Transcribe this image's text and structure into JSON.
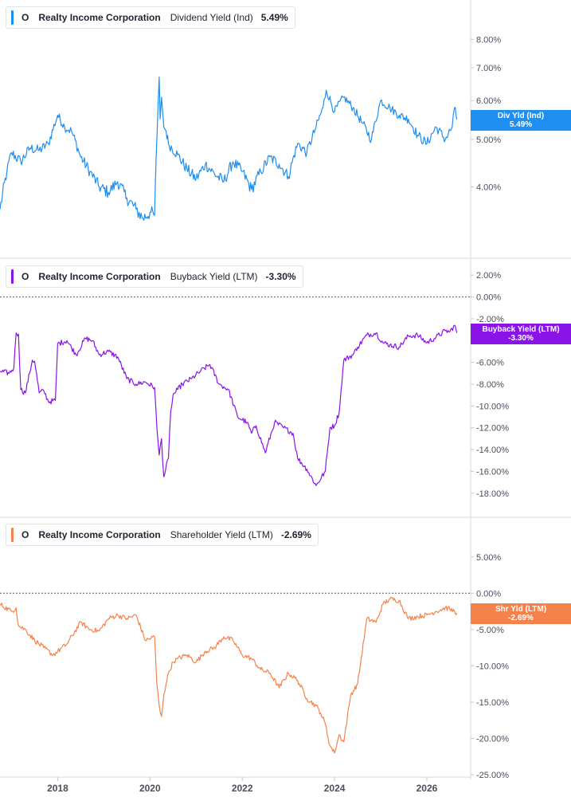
{
  "colors": {
    "dividend": "#1f8ef1",
    "buyback": "#8a14e8",
    "shareholder": "#f5824a",
    "axis_text": "#4a4f5c",
    "grid": "#d8dbe0"
  },
  "x_axis": {
    "range": [
      2016.75,
      2026.95
    ],
    "ticks": [
      {
        "value": 2018,
        "label": "2018"
      },
      {
        "value": 2020,
        "label": "2020"
      },
      {
        "value": 2022,
        "label": "2022"
      },
      {
        "value": 2024,
        "label": "2024"
      },
      {
        "value": 2026,
        "label": "2026"
      }
    ]
  },
  "panels": [
    {
      "key": "dividend",
      "legend": {
        "ticker": "O",
        "company": "Realty Income Corporation",
        "metric": "Dividend Yield (Ind)",
        "value": "5.49%"
      },
      "flag": {
        "label": "Div Yld (Ind)",
        "value": "5.49%"
      },
      "last_value": 5.49,
      "yscale": "log",
      "ylim": [
        3.25,
        8.6
      ],
      "ticks": [
        {
          "value": 8,
          "label": "8.00%"
        },
        {
          "value": 7,
          "label": "7.00%"
        },
        {
          "value": 6,
          "label": "6.00%"
        },
        {
          "value": 5,
          "label": "5.00%"
        },
        {
          "value": 4,
          "label": "4.00%"
        }
      ]
    },
    {
      "key": "buyback",
      "legend": {
        "ticker": "O",
        "company": "Realty Income Corporation",
        "metric": "Buyback Yield (LTM)",
        "value": "-3.30%"
      },
      "flag": {
        "label": "Buyback Yield (LTM)",
        "value": "-3.30%"
      },
      "last_value": -3.3,
      "yscale": "linear",
      "ylim": [
        -18.6,
        2.6
      ],
      "zero_line": true,
      "ticks": [
        {
          "value": 2,
          "label": "2.00%"
        },
        {
          "value": 0,
          "label": "0.00%"
        },
        {
          "value": -2,
          "label": "-2.00%"
        },
        {
          "value": -4,
          "label": "-4.00%"
        },
        {
          "value": -6,
          "label": "-6.00%"
        },
        {
          "value": -8,
          "label": "-8.00%"
        },
        {
          "value": -10,
          "label": "-10.00%"
        },
        {
          "value": -12,
          "label": "-12.00%"
        },
        {
          "value": -14,
          "label": "-14.00%"
        },
        {
          "value": -16,
          "label": "-16.00%"
        },
        {
          "value": -18,
          "label": "-18.00%"
        }
      ]
    },
    {
      "key": "shareholder",
      "legend": {
        "ticker": "O",
        "company": "Realty Income Corporation",
        "metric": "Shareholder Yield (LTM)",
        "value": "-2.69%"
      },
      "flag": {
        "label": "Shr Yld (LTM)",
        "value": "-2.69%"
      },
      "last_value": -2.69,
      "yscale": "linear",
      "ylim": [
        -25,
        7.5
      ],
      "zero_line": true,
      "ticks": [
        {
          "value": 5,
          "label": "5.00%"
        },
        {
          "value": 0,
          "label": "0.00%"
        },
        {
          "value": -5,
          "label": "-5.00%"
        },
        {
          "value": -10,
          "label": "-10.00%"
        },
        {
          "value": -15,
          "label": "-15.00%"
        },
        {
          "value": -20,
          "label": "-20.00%"
        },
        {
          "value": -25,
          "label": "-25.00%"
        }
      ]
    }
  ],
  "chart_data": [
    {
      "type": "line",
      "series": [
        {
          "name": "Dividend Yield (Ind)",
          "x": [
            2016.75,
            2016.9,
            2017.0,
            2017.2,
            2017.4,
            2017.6,
            2017.8,
            2018.0,
            2018.15,
            2018.3,
            2018.5,
            2018.7,
            2018.9,
            2019.1,
            2019.3,
            2019.5,
            2019.7,
            2019.85,
            2020.0,
            2020.1,
            2020.15,
            2020.2,
            2020.22,
            2020.25,
            2020.3,
            2020.35,
            2020.4,
            2020.6,
            2020.8,
            2021.0,
            2021.2,
            2021.4,
            2021.6,
            2021.8,
            2022.0,
            2022.2,
            2022.4,
            2022.6,
            2022.8,
            2023.0,
            2023.2,
            2023.4,
            2023.6,
            2023.75,
            2023.82,
            2024.0,
            2024.2,
            2024.4,
            2024.6,
            2024.8,
            2025.0,
            2025.2,
            2025.4,
            2025.6,
            2025.8,
            2026.0,
            2026.2,
            2026.4,
            2026.55,
            2026.6,
            2026.65
          ],
          "values": [
            3.6,
            4.3,
            4.7,
            4.5,
            4.8,
            4.75,
            4.9,
            5.6,
            5.3,
            5.2,
            4.6,
            4.3,
            4.0,
            3.9,
            4.1,
            3.8,
            3.6,
            3.45,
            3.55,
            3.5,
            5.0,
            6.7,
            5.5,
            6.1,
            5.3,
            5.2,
            4.9,
            4.65,
            4.35,
            4.15,
            4.45,
            4.25,
            4.1,
            4.5,
            4.3,
            3.95,
            4.3,
            4.6,
            4.45,
            4.2,
            4.9,
            4.7,
            5.3,
            5.8,
            6.3,
            5.7,
            6.1,
            5.8,
            5.4,
            5.0,
            6.0,
            5.8,
            5.6,
            5.5,
            5.1,
            4.9,
            5.3,
            5.0,
            5.3,
            5.8,
            5.49
          ]
        }
      ],
      "ylabel": "",
      "ylim": [
        3.25,
        8.6
      ],
      "yscale": "log"
    },
    {
      "type": "line",
      "series": [
        {
          "name": "Buyback Yield (LTM)",
          "x": [
            2016.75,
            2016.95,
            2017.05,
            2017.1,
            2017.15,
            2017.2,
            2017.3,
            2017.45,
            2017.5,
            2017.6,
            2017.7,
            2017.8,
            2017.95,
            2018.0,
            2018.2,
            2018.4,
            2018.6,
            2018.75,
            2018.9,
            2019.1,
            2019.3,
            2019.5,
            2019.7,
            2019.9,
            2020.1,
            2020.15,
            2020.2,
            2020.25,
            2020.3,
            2020.4,
            2020.45,
            2020.5,
            2020.6,
            2020.7,
            2020.9,
            2021.1,
            2021.3,
            2021.5,
            2021.7,
            2021.9,
            2022.1,
            2022.2,
            2022.3,
            2022.5,
            2022.7,
            2022.9,
            2023.1,
            2023.2,
            2023.4,
            2023.6,
            2023.8,
            2023.9,
            2024.0,
            2024.1,
            2024.2,
            2024.4,
            2024.5,
            2024.7,
            2024.9,
            2025.05,
            2025.2,
            2025.4,
            2025.6,
            2025.8,
            2026.0,
            2026.2,
            2026.4,
            2026.5,
            2026.6,
            2026.65
          ],
          "values": [
            -6.8,
            -7.0,
            -6.5,
            -3.3,
            -3.4,
            -8.5,
            -8.8,
            -5.8,
            -5.9,
            -8.8,
            -8.6,
            -9.6,
            -9.5,
            -4.3,
            -4.0,
            -5.3,
            -3.8,
            -4.0,
            -5.3,
            -5.0,
            -5.5,
            -7.5,
            -8.0,
            -7.8,
            -8.3,
            -12.0,
            -14.5,
            -13.0,
            -16.5,
            -14.8,
            -10.5,
            -9.0,
            -8.5,
            -8.0,
            -7.5,
            -6.8,
            -6.2,
            -8.0,
            -8.5,
            -11.0,
            -11.5,
            -12.5,
            -11.8,
            -14.3,
            -11.5,
            -12.0,
            -12.5,
            -14.8,
            -15.8,
            -17.3,
            -16.0,
            -12.0,
            -11.8,
            -10.6,
            -5.8,
            -5.3,
            -4.6,
            -3.5,
            -3.3,
            -4.2,
            -4.4,
            -4.6,
            -3.6,
            -3.5,
            -4.2,
            -3.7,
            -3.1,
            -3.2,
            -2.6,
            -3.3
          ]
        }
      ],
      "ylabel": "",
      "ylim": [
        -18.6,
        2.6
      ]
    },
    {
      "type": "line",
      "series": [
        {
          "name": "Shareholder Yield (LTM)",
          "x": [
            2016.75,
            2017.0,
            2017.1,
            2017.15,
            2017.3,
            2017.5,
            2017.7,
            2017.9,
            2018.0,
            2018.2,
            2018.5,
            2018.7,
            2018.9,
            2019.1,
            2019.3,
            2019.5,
            2019.7,
            2019.9,
            2020.1,
            2020.15,
            2020.2,
            2020.25,
            2020.3,
            2020.35,
            2020.4,
            2020.5,
            2020.6,
            2020.8,
            2021.0,
            2021.2,
            2021.4,
            2021.6,
            2021.8,
            2022.0,
            2022.2,
            2022.4,
            2022.6,
            2022.8,
            2023.0,
            2023.2,
            2023.4,
            2023.6,
            2023.7,
            2023.8,
            2023.9,
            2024.0,
            2024.1,
            2024.2,
            2024.35,
            2024.5,
            2024.7,
            2024.9,
            2025.05,
            2025.2,
            2025.4,
            2025.6,
            2025.8,
            2026.0,
            2026.2,
            2026.4,
            2026.5,
            2026.6,
            2026.65
          ],
          "values": [
            -1.5,
            -2.5,
            -2.0,
            -4.5,
            -5.0,
            -6.5,
            -7.5,
            -8.5,
            -8.0,
            -7.0,
            -4.0,
            -5.0,
            -5.2,
            -3.5,
            -3.0,
            -3.5,
            -3.0,
            -6.5,
            -6.0,
            -12.5,
            -15.5,
            -17.0,
            -14.0,
            -12.5,
            -11.0,
            -9.5,
            -9.0,
            -8.5,
            -9.5,
            -8.0,
            -7.5,
            -6.0,
            -6.5,
            -8.5,
            -9.0,
            -10.5,
            -11.0,
            -13.0,
            -11.0,
            -12.0,
            -14.5,
            -15.5,
            -16.5,
            -18.0,
            -21.0,
            -22.0,
            -19.5,
            -20.5,
            -14.0,
            -12.5,
            -3.5,
            -4.0,
            -1.5,
            -0.8,
            -1.0,
            -3.5,
            -3.2,
            -3.0,
            -2.5,
            -2.0,
            -2.2,
            -2.5,
            -2.69
          ]
        }
      ],
      "ylabel": "",
      "ylim": [
        -25,
        7.5
      ]
    }
  ]
}
